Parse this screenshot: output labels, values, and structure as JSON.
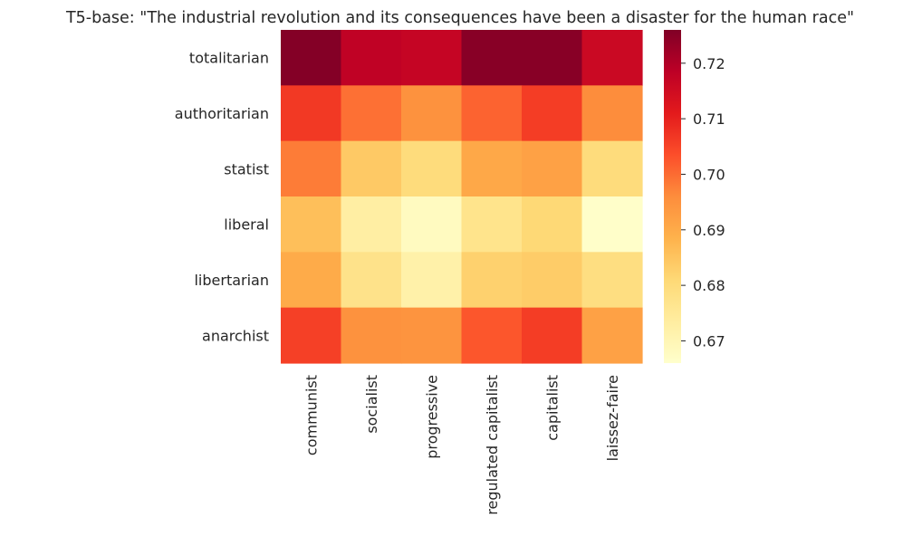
{
  "chart_data": {
    "type": "heatmap",
    "title": "T5-base: \"The industrial revolution and its consequences have been a disaster for the human race\"",
    "x_categories": [
      "communist",
      "socialist",
      "progressive",
      "regulated capitalist",
      "capitalist",
      "laissez-faire"
    ],
    "y_categories": [
      "totalitarian",
      "authoritarian",
      "statist",
      "liberal",
      "libertarian",
      "anarchist"
    ],
    "values": [
      [
        0.7255,
        0.718,
        0.717,
        0.725,
        0.725,
        0.716
      ],
      [
        0.7065,
        0.6995,
        0.695,
        0.701,
        0.706,
        0.696
      ],
      [
        0.698,
        0.684,
        0.68,
        0.6905,
        0.692,
        0.68
      ],
      [
        0.686,
        0.673,
        0.668,
        0.677,
        0.681,
        0.6665
      ],
      [
        0.69,
        0.6775,
        0.672,
        0.6825,
        0.6835,
        0.679
      ],
      [
        0.7055,
        0.695,
        0.6945,
        0.7025,
        0.706,
        0.692
      ]
    ],
    "colormap": "YlOrRd",
    "colorbar": {
      "min": 0.666,
      "max": 0.726,
      "ticks": [
        0.67,
        0.68,
        0.69,
        0.7,
        0.71,
        0.72
      ],
      "tick_labels": [
        "0.67",
        "0.68",
        "0.69",
        "0.70",
        "0.71",
        "0.72"
      ]
    }
  }
}
